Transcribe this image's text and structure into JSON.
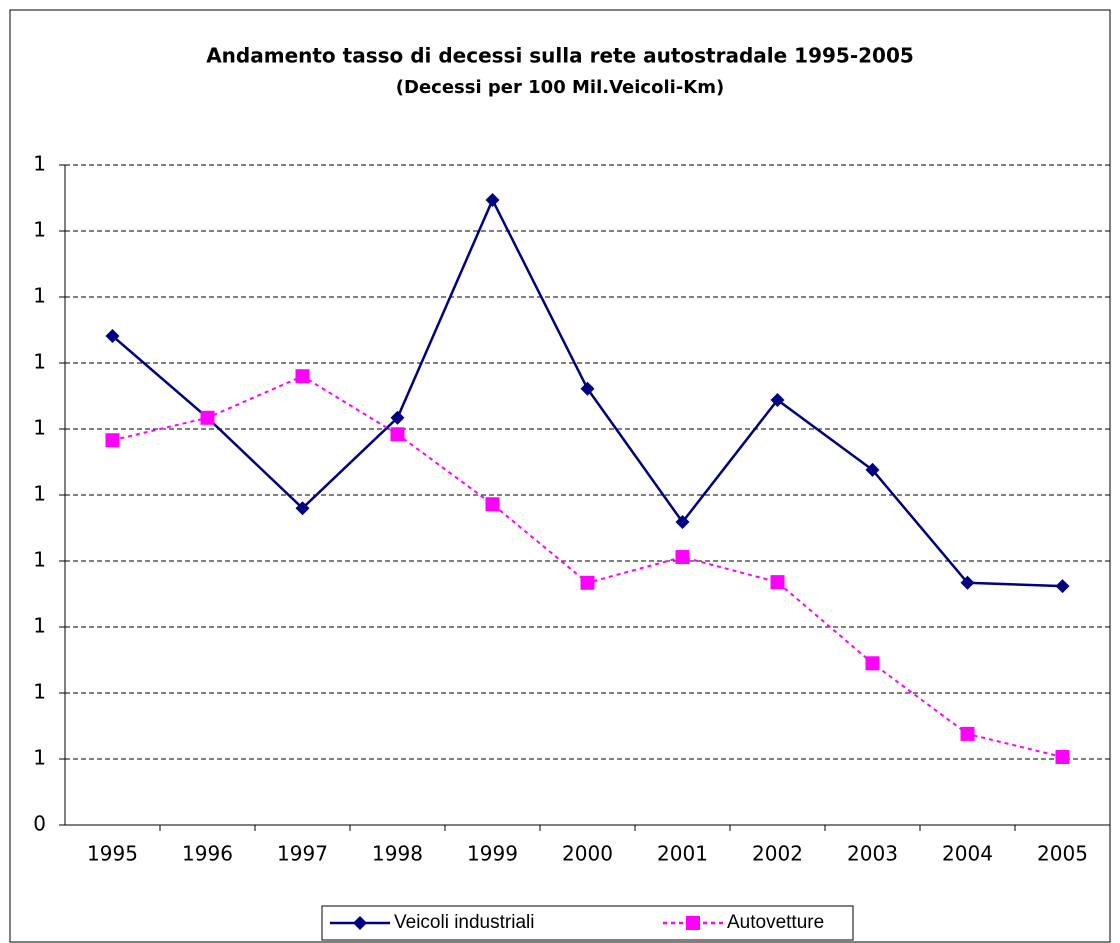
{
  "chart_data": {
    "type": "line",
    "title": "Andamento tasso di decessi sulla rete autostradale 1995-2005",
    "subtitle": "(Decessi per 100 Mil.Veicoli-Km)",
    "categories": [
      "1995",
      "1996",
      "1997",
      "1998",
      "1999",
      "2000",
      "2001",
      "2002",
      "2003",
      "2004",
      "2005"
    ],
    "series": [
      {
        "name": "Veicoli industriali",
        "color": "#000080",
        "dashed": false,
        "marker": "diamond",
        "values": [
          1.141,
          1.017,
          0.88,
          1.017,
          1.347,
          1.061,
          0.859,
          1.044,
          0.938,
          0.767,
          0.762
        ]
      },
      {
        "name": "Autovetture",
        "color": "#ff00ff",
        "dashed": true,
        "marker": "square",
        "values": [
          0.983,
          1.017,
          1.08,
          0.992,
          0.886,
          0.767,
          0.806,
          0.768,
          0.645,
          0.538,
          0.503
        ]
      }
    ],
    "ylim": [
      0.4,
      1.4
    ],
    "yticks": [
      {
        "value": 0.4,
        "label": "0"
      },
      {
        "value": 0.5,
        "label": "1"
      },
      {
        "value": 0.6,
        "label": "1"
      },
      {
        "value": 0.7,
        "label": "1"
      },
      {
        "value": 0.8,
        "label": "1"
      },
      {
        "value": 0.9,
        "label": "1"
      },
      {
        "value": 1.0,
        "label": "1"
      },
      {
        "value": 1.1,
        "label": "1"
      },
      {
        "value": 1.2,
        "label": "1"
      },
      {
        "value": 1.3,
        "label": "1"
      },
      {
        "value": 1.4,
        "label": "1"
      }
    ],
    "grid": true,
    "legend": "bottom"
  }
}
